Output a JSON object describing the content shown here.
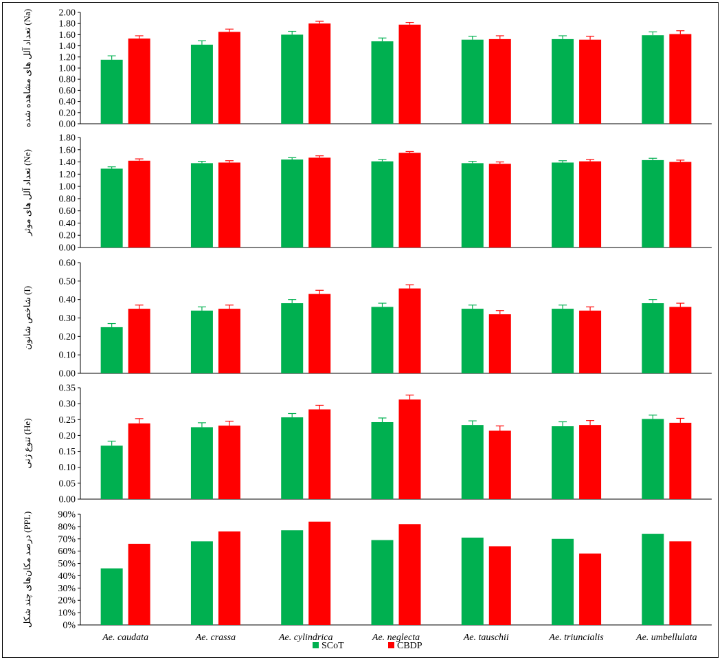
{
  "colors": {
    "scot": "#00b050",
    "cbdp": "#ff0000",
    "frame": "#000000"
  },
  "legend": [
    {
      "name": "SCoT",
      "color": "#00b050"
    },
    {
      "name": "CBDP",
      "color": "#ff0000"
    }
  ],
  "chart_data": [
    {
      "type": "bar",
      "ylabel": "تعداد آلل های مشاهده شده (Na)",
      "ylim": [
        0,
        2.0
      ],
      "yticks": [
        "0.00",
        "0.20",
        "0.40",
        "0.60",
        "0.80",
        "1.00",
        "1.20",
        "1.40",
        "1.60",
        "1.80",
        "2.00"
      ],
      "categories": [
        "Ae. caudata",
        "Ae. crassa",
        "Ae. cylindrica",
        "Ae. neglecta",
        "Ae. tauschii",
        "Ae. triuncialis",
        "Ae. umbellulata"
      ],
      "series": [
        {
          "name": "SCoT",
          "values": [
            1.15,
            1.42,
            1.6,
            1.48,
            1.51,
            1.52,
            1.59
          ],
          "errors": [
            0.07,
            0.07,
            0.06,
            0.06,
            0.06,
            0.06,
            0.06
          ]
        },
        {
          "name": "CBDP",
          "values": [
            1.53,
            1.65,
            1.8,
            1.78,
            1.52,
            1.51,
            1.61
          ],
          "errors": [
            0.05,
            0.05,
            0.04,
            0.04,
            0.06,
            0.06,
            0.06
          ]
        }
      ],
      "grid": false
    },
    {
      "type": "bar",
      "ylabel": "تعداد آلل های موثر (Ne)",
      "ylim": [
        0,
        1.8
      ],
      "yticks": [
        "0.00",
        "0.20",
        "0.40",
        "0.60",
        "0.80",
        "1.00",
        "1.20",
        "1.40",
        "1.60",
        "1.80"
      ],
      "categories": [
        "Ae. caudata",
        "Ae. crassa",
        "Ae. cylindrica",
        "Ae. neglecta",
        "Ae. tauschii",
        "Ae. triuncialis",
        "Ae. umbellulata"
      ],
      "series": [
        {
          "name": "SCoT",
          "values": [
            1.29,
            1.38,
            1.44,
            1.41,
            1.38,
            1.39,
            1.43
          ],
          "errors": [
            0.03,
            0.03,
            0.03,
            0.03,
            0.03,
            0.03,
            0.03
          ]
        },
        {
          "name": "CBDP",
          "values": [
            1.42,
            1.39,
            1.47,
            1.55,
            1.37,
            1.41,
            1.4
          ],
          "errors": [
            0.03,
            0.03,
            0.03,
            0.02,
            0.03,
            0.03,
            0.03
          ]
        }
      ],
      "grid": false
    },
    {
      "type": "bar",
      "ylabel": "شاخص شانون (I)",
      "ylim": [
        0,
        0.6
      ],
      "yticks": [
        "0.00",
        "0.10",
        "0.20",
        "0.30",
        "0.40",
        "0.50",
        "0.60"
      ],
      "categories": [
        "Ae. caudata",
        "Ae. crassa",
        "Ae. cylindrica",
        "Ae. neglecta",
        "Ae. tauschii",
        "Ae. triuncialis",
        "Ae. umbellulata"
      ],
      "series": [
        {
          "name": "SCoT",
          "values": [
            0.25,
            0.34,
            0.38,
            0.36,
            0.35,
            0.35,
            0.38
          ],
          "errors": [
            0.02,
            0.02,
            0.02,
            0.02,
            0.02,
            0.02,
            0.02
          ]
        },
        {
          "name": "CBDP",
          "values": [
            0.35,
            0.35,
            0.43,
            0.46,
            0.32,
            0.34,
            0.36
          ],
          "errors": [
            0.02,
            0.02,
            0.02,
            0.02,
            0.02,
            0.02,
            0.02
          ]
        }
      ],
      "grid": false
    },
    {
      "type": "bar",
      "ylabel": "تنوع ژنی (He)",
      "ylim": [
        0,
        0.35
      ],
      "yticks": [
        "0.00",
        "0.05",
        "0.10",
        "0.15",
        "0.20",
        "0.25",
        "0.30",
        "0.35"
      ],
      "categories": [
        "Ae. caudata",
        "Ae. crassa",
        "Ae. cylindrica",
        "Ae. neglecta",
        "Ae. tauschii",
        "Ae. triuncialis",
        "Ae. umbellulata"
      ],
      "series": [
        {
          "name": "SCoT",
          "values": [
            0.168,
            0.226,
            0.257,
            0.242,
            0.233,
            0.229,
            0.252
          ],
          "errors": [
            0.014,
            0.014,
            0.012,
            0.013,
            0.013,
            0.014,
            0.012
          ]
        },
        {
          "name": "CBDP",
          "values": [
            0.238,
            0.231,
            0.282,
            0.313,
            0.215,
            0.233,
            0.24
          ],
          "errors": [
            0.015,
            0.014,
            0.013,
            0.014,
            0.015,
            0.014,
            0.014
          ]
        }
      ],
      "grid": false
    },
    {
      "type": "bar",
      "ylabel": "درصد مکان‌های چند شکل (PPL)",
      "ylim": [
        0,
        90
      ],
      "yticks": [
        "0%",
        "10%",
        "20%",
        "30%",
        "40%",
        "50%",
        "60%",
        "70%",
        "80%",
        "90%"
      ],
      "categories": [
        "Ae. caudata",
        "Ae. crassa",
        "Ae. cylindrica",
        "Ae. neglecta",
        "Ae. tauschii",
        "Ae. triuncialis",
        "Ae. umbellulata"
      ],
      "series": [
        {
          "name": "SCoT",
          "values": [
            46,
            68,
            77,
            69,
            71,
            70,
            74
          ],
          "errors": null
        },
        {
          "name": "CBDP",
          "values": [
            66,
            76,
            84,
            82,
            64,
            58,
            68
          ],
          "errors": null
        }
      ],
      "grid": false
    }
  ]
}
